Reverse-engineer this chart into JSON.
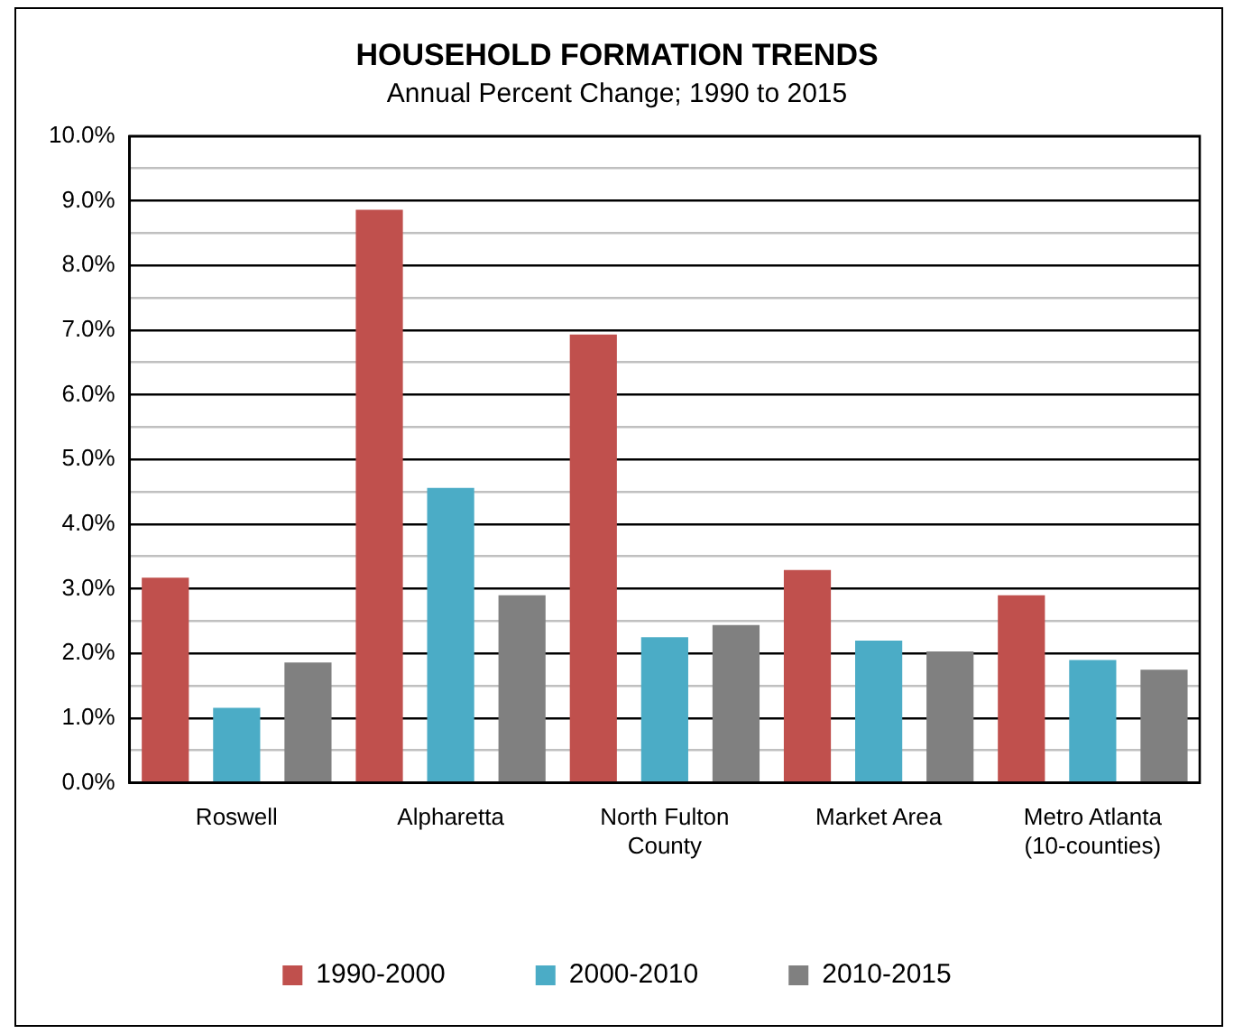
{
  "chart_data": {
    "type": "bar",
    "title": "HOUSEHOLD FORMATION TRENDS",
    "subtitle": "Annual Percent Change; 1990 to 2015",
    "categories": [
      "Roswell",
      "Alpharetta",
      "North Fulton County",
      "Market Area",
      "Metro Atlanta (10-counties)"
    ],
    "series": [
      {
        "name": "1990-2000",
        "color": "#c0504d",
        "values": [
          3.17,
          8.86,
          6.93,
          3.29,
          2.9
        ]
      },
      {
        "name": "2000-2010",
        "color": "#4bacc6",
        "values": [
          1.16,
          4.56,
          2.25,
          2.2,
          1.9
        ]
      },
      {
        "name": "2010-2015",
        "color": "#808080",
        "values": [
          1.86,
          2.9,
          2.44,
          2.03,
          1.75
        ]
      }
    ],
    "ylim": [
      0,
      10
    ],
    "yticks": [
      {
        "value": 0,
        "label": "0.0%"
      },
      {
        "value": 0.5,
        "label": null
      },
      {
        "value": 1,
        "label": "1.0%"
      },
      {
        "value": 1.5,
        "label": null
      },
      {
        "value": 2,
        "label": "2.0%"
      },
      {
        "value": 2.5,
        "label": null
      },
      {
        "value": 3,
        "label": "3.0%"
      },
      {
        "value": 3.5,
        "label": null
      },
      {
        "value": 4,
        "label": "4.0%"
      },
      {
        "value": 4.5,
        "label": null
      },
      {
        "value": 5,
        "label": "5.0%"
      },
      {
        "value": 5.5,
        "label": null
      },
      {
        "value": 6,
        "label": "6.0%"
      },
      {
        "value": 6.5,
        "label": null
      },
      {
        "value": 7,
        "label": "7.0%"
      },
      {
        "value": 7.5,
        "label": null
      },
      {
        "value": 8,
        "label": "8.0%"
      },
      {
        "value": 8.5,
        "label": null
      },
      {
        "value": 9,
        "label": "9.0%"
      },
      {
        "value": 9.5,
        "label": null
      },
      {
        "value": 10,
        "label": "10.0%"
      }
    ],
    "grid": "y",
    "legend": "bottom"
  }
}
